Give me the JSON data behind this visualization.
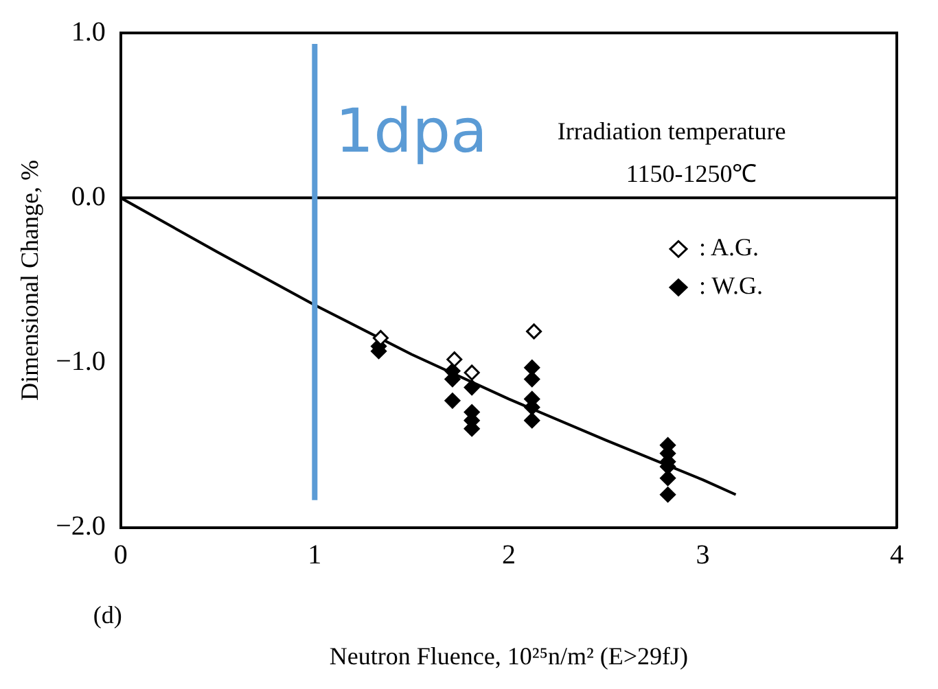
{
  "chart_data": {
    "type": "scatter",
    "xlabel": "Neutron Fluence, 10²⁵n/m² (E>29fJ)",
    "ylabel": "Dimensional Change, %",
    "xlim": [
      0,
      4
    ],
    "xticks": [
      0,
      1,
      2,
      3,
      4
    ],
    "ylim": [
      -2,
      1
    ],
    "yticks": [
      {
        "value": -2,
        "label": "−2.0"
      },
      {
        "value": -1,
        "label": "−1.0"
      },
      {
        "value": 0,
        "label": "0.0"
      },
      {
        "value": 1,
        "label": "1.0"
      }
    ],
    "grid": false,
    "legend": "top right",
    "marker": "diamond",
    "series": [
      {
        "name": ": A.G.",
        "color": "#000000",
        "x": [
          1.34,
          1.72,
          1.81,
          2.13
        ],
        "values": [
          -0.85,
          -0.98,
          -1.06,
          -0.81
        ]
      },
      {
        "name": ": W.G.",
        "color": "#000000",
        "x": [
          1.33,
          1.33,
          1.71,
          1.71,
          1.71,
          1.81,
          1.81,
          1.81,
          1.81,
          2.12,
          2.12,
          2.12,
          2.12,
          2.12,
          2.82,
          2.82,
          2.82,
          2.82,
          2.82,
          2.82
        ],
        "values": [
          -0.9,
          -0.93,
          -1.05,
          -1.1,
          -1.23,
          -1.15,
          -1.3,
          -1.35,
          -1.4,
          -1.03,
          -1.1,
          -1.22,
          -1.27,
          -1.35,
          -1.5,
          -1.55,
          -1.6,
          -1.63,
          -1.7,
          -1.8
        ]
      },
      {
        "type": "line",
        "color": "#000000",
        "marker": "none",
        "x": [
          0,
          0.5,
          1,
          1.5,
          2,
          2.5,
          3,
          3.17
        ],
        "values": [
          0,
          -0.33,
          -0.65,
          -0.95,
          -1.22,
          -1.47,
          -1.71,
          -1.8
        ]
      }
    ],
    "ref_lines": [
      {
        "axis": "y",
        "value": 0,
        "color": "#000000"
      },
      {
        "axis": "x",
        "value": 1,
        "label": "1dpa",
        "color": "#5b9bd5"
      }
    ],
    "annotations": [
      "Irradiation temperature",
      "1150-1250℃",
      "(d)"
    ]
  }
}
